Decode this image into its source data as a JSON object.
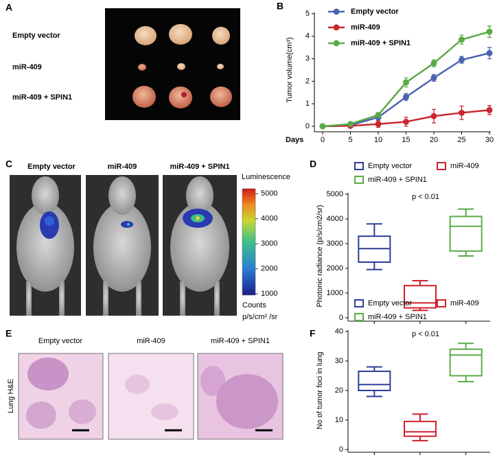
{
  "panel_labels": [
    "A",
    "B",
    "C",
    "D",
    "E",
    "F"
  ],
  "panel_a": {
    "row_labels": [
      "Empty vector",
      "miR-409",
      "miR-409 + SPIN1"
    ]
  },
  "panel_c": {
    "column_labels": [
      "Empty vector",
      "miR-409",
      "miR-409 + SPIN1"
    ],
    "colorbar_title": "Luminescence",
    "colorbar_lim": [
      950,
      5200
    ],
    "colorbar_ticks": [
      1000,
      2000,
      3000,
      4000,
      5000
    ],
    "units_line1": "Counts",
    "units_line2": "p/s/cm² /sr"
  },
  "panel_e": {
    "column_labels": [
      "Empty vector",
      "miR-409",
      "miR-409 + SPIN1"
    ],
    "side_label": "Lung H&E"
  },
  "chart_data": [
    {
      "type": "line",
      "x_label": "Days",
      "y_label": "Tumor volume(cm³)",
      "x": [
        0,
        5,
        10,
        15,
        20,
        25,
        30
      ],
      "xlim": [
        0,
        30
      ],
      "xticks": [
        0,
        5,
        10,
        15,
        20,
        25,
        30
      ],
      "ylim": [
        0,
        5
      ],
      "yticks": [
        0,
        1,
        2,
        3,
        4,
        5
      ],
      "series": [
        {
          "name": "Empty vector",
          "color": "#4a64b0",
          "values": [
            0,
            0.05,
            0.4,
            1.3,
            2.15,
            2.95,
            3.25
          ],
          "errors": [
            0.03,
            0.05,
            0.1,
            0.15,
            0.15,
            0.15,
            0.25
          ]
        },
        {
          "name": "miR-409",
          "color": "#c8282e",
          "values": [
            0,
            0.02,
            0.1,
            0.2,
            0.45,
            0.6,
            0.72
          ],
          "errors": [
            0.02,
            0.05,
            0.15,
            0.2,
            0.3,
            0.3,
            0.2
          ]
        },
        {
          "name": "miR-409 + SPIN1",
          "color": "#5aaa46",
          "values": [
            0,
            0.1,
            0.5,
            1.95,
            2.8,
            3.85,
            4.2
          ],
          "errors": [
            0.03,
            0.05,
            0.1,
            0.2,
            0.15,
            0.2,
            0.25
          ]
        }
      ]
    },
    {
      "type": "box",
      "y_label": "Photonic radiance (p/s/cm2/sr)",
      "annotation": "p < 0.01",
      "categories": [
        null,
        null,
        null
      ],
      "ylim": [
        0,
        5000
      ],
      "yticks": [
        0,
        1000,
        2000,
        3000,
        4000,
        5000
      ],
      "series": [
        {
          "name": "Empty vector",
          "color": "#2b3d97",
          "min": 1950,
          "q1": 2250,
          "median": 2800,
          "q3": 3300,
          "max": 3800
        },
        {
          "name": "miR-409",
          "color": "#d0202a",
          "min": 300,
          "q1": 400,
          "median": 600,
          "q3": 1300,
          "max": 1500
        },
        {
          "name": "miR-409 + SPIN1",
          "color": "#5aaa46",
          "min": 2500,
          "q1": 2700,
          "median": 3700,
          "q3": 4100,
          "max": 4400
        }
      ]
    },
    {
      "type": "box",
      "y_label": "No of tumor foci in lung",
      "annotation": "p < 0.01",
      "categories": [
        null,
        null,
        null
      ],
      "ylim": [
        0,
        40
      ],
      "yticks": [
        0,
        10,
        20,
        30,
        40
      ],
      "series": [
        {
          "name": "Empty vector",
          "color": "#2b3d97",
          "min": 18,
          "q1": 20,
          "median": 22,
          "q3": 26.5,
          "max": 28
        },
        {
          "name": "miR-409",
          "color": "#d0202a",
          "min": 3,
          "q1": 4.5,
          "median": 6,
          "q3": 9.5,
          "max": 12
        },
        {
          "name": "miR-409 + SPIN1",
          "color": "#5aaa46",
          "min": 23,
          "q1": 25,
          "median": 32,
          "q3": 34,
          "max": 36
        }
      ]
    }
  ]
}
